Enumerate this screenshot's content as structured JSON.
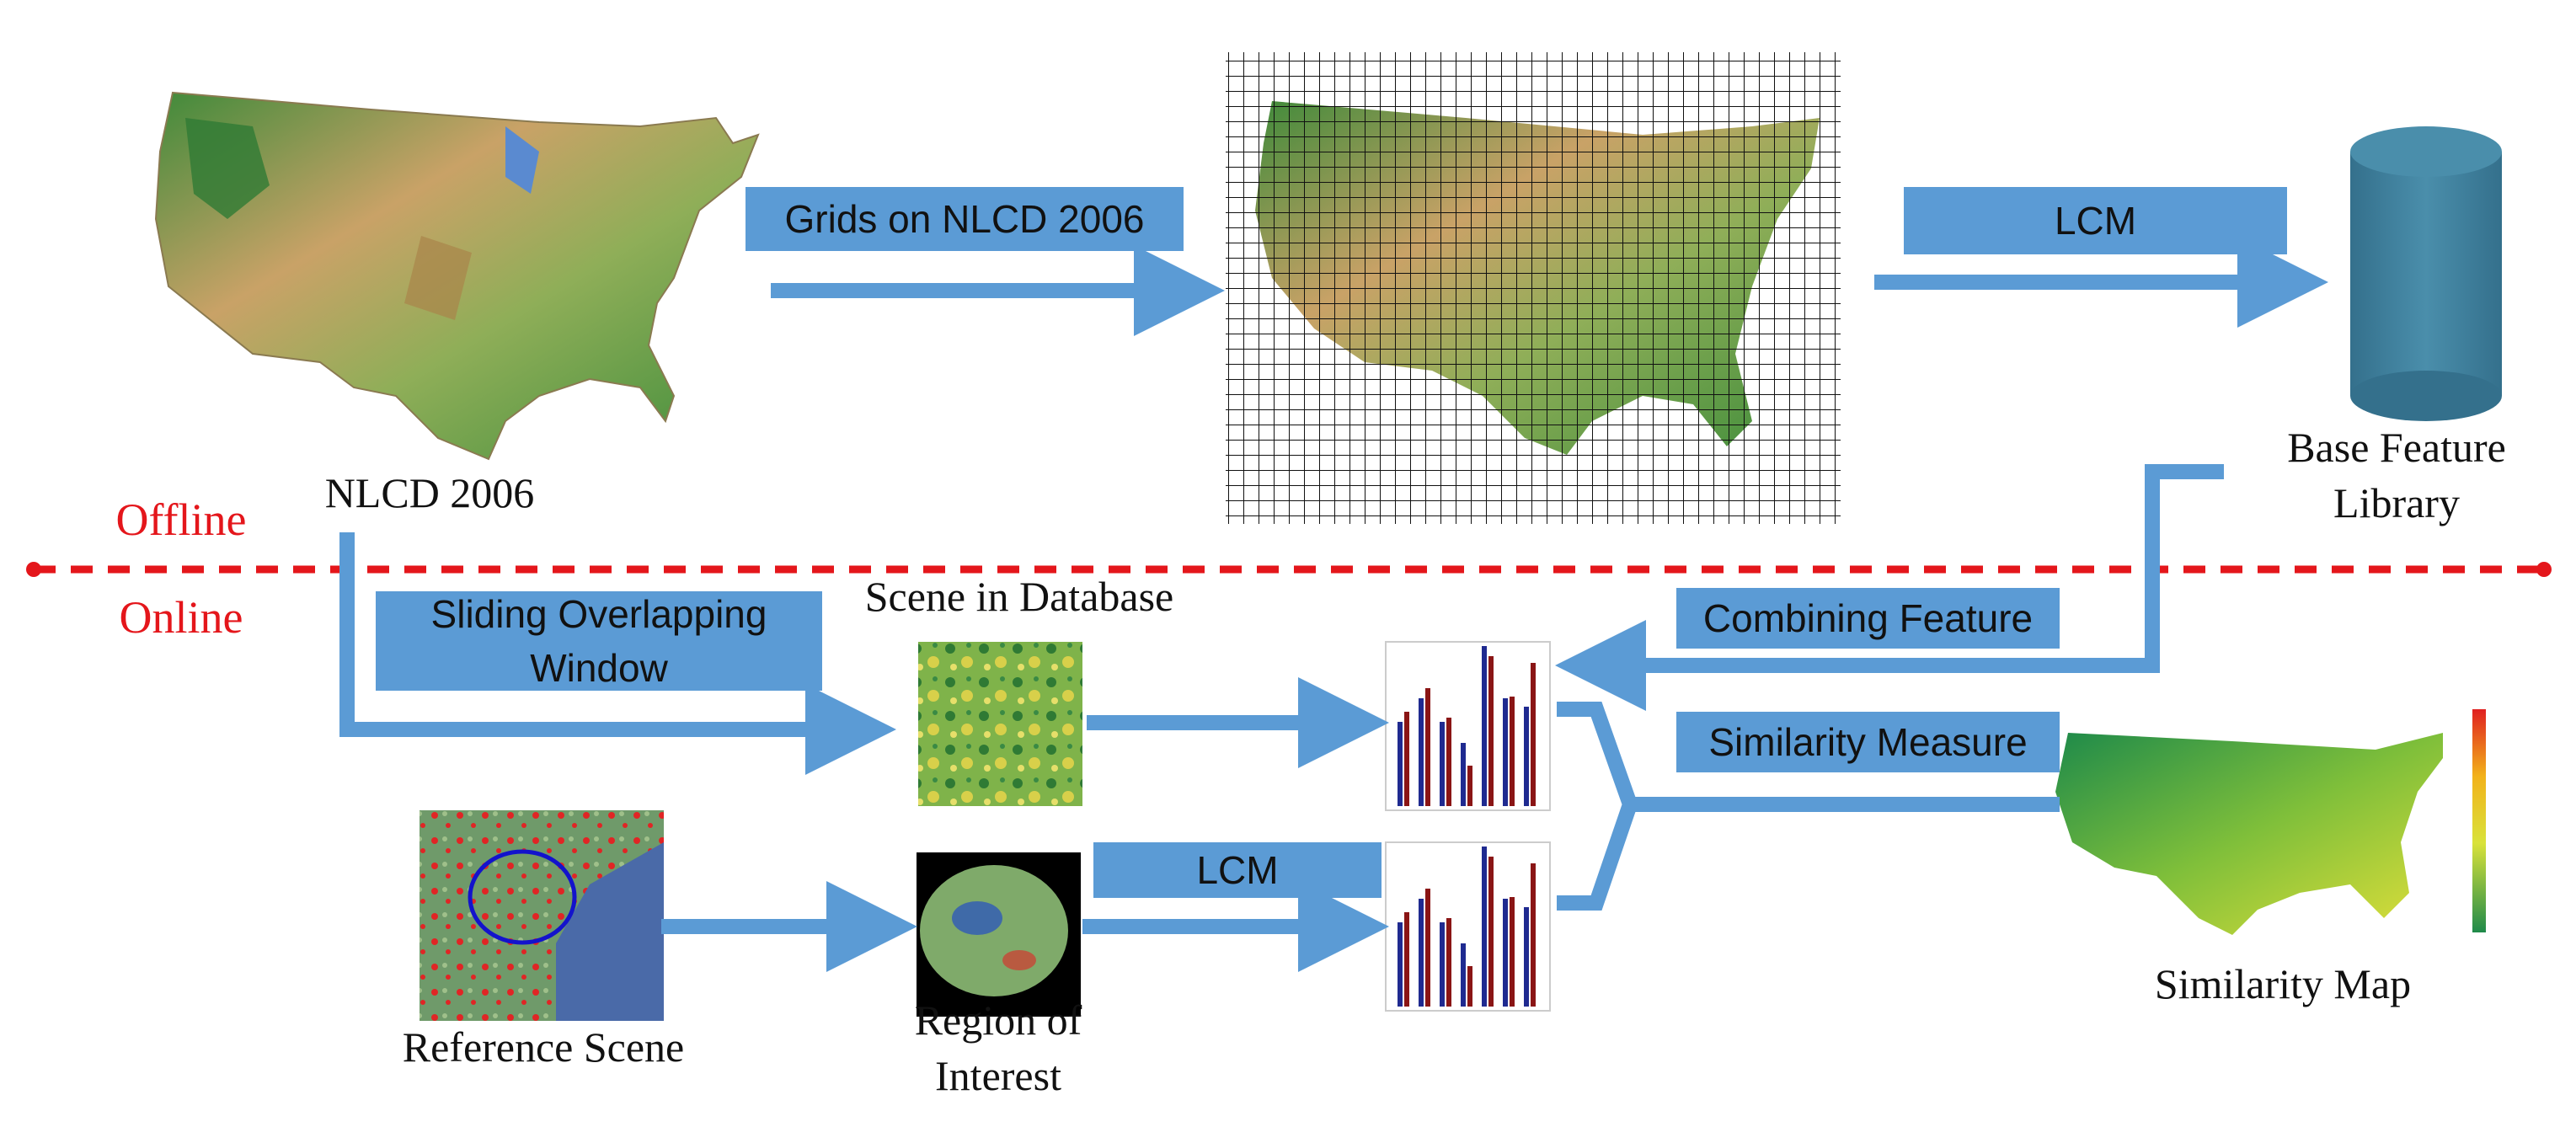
{
  "colors": {
    "arrow": "#5b9bd5",
    "divider": "#e4161b",
    "cylinder": "#3e7e9b",
    "label_box": "#5b9bd5",
    "bar_blue": "#1f2a90",
    "bar_red": "#8a1515"
  },
  "labels": {
    "nlcd": "NLCD 2006",
    "offline": "Offline",
    "online": "Online",
    "base_feature_library": "Base Feature Library",
    "scene_in_database": "Scene in Database",
    "reference_scene": "Reference Scene",
    "region_of_interest": "Region of Interest",
    "similarity_map": "Similarity Map"
  },
  "process_boxes": {
    "grids": "Grids on NLCD 2006",
    "lcm_top": "LCM",
    "sliding_window": "Sliding Overlapping Window",
    "combining_feature": "Combining Feature",
    "similarity_measure": "Similarity Measure",
    "lcm_bottom": "LCM"
  },
  "icons": {
    "us_map": "us-land-cover-map",
    "gridded_map": "gridded-us-map",
    "database": "database-cylinder-icon",
    "histogram": "bar-histogram-icon",
    "scene_tile": "land-cover-scene-tile",
    "reference": "satellite-reference-scene",
    "roi": "region-of-interest-mask",
    "similarity": "similarity-heat-map"
  }
}
